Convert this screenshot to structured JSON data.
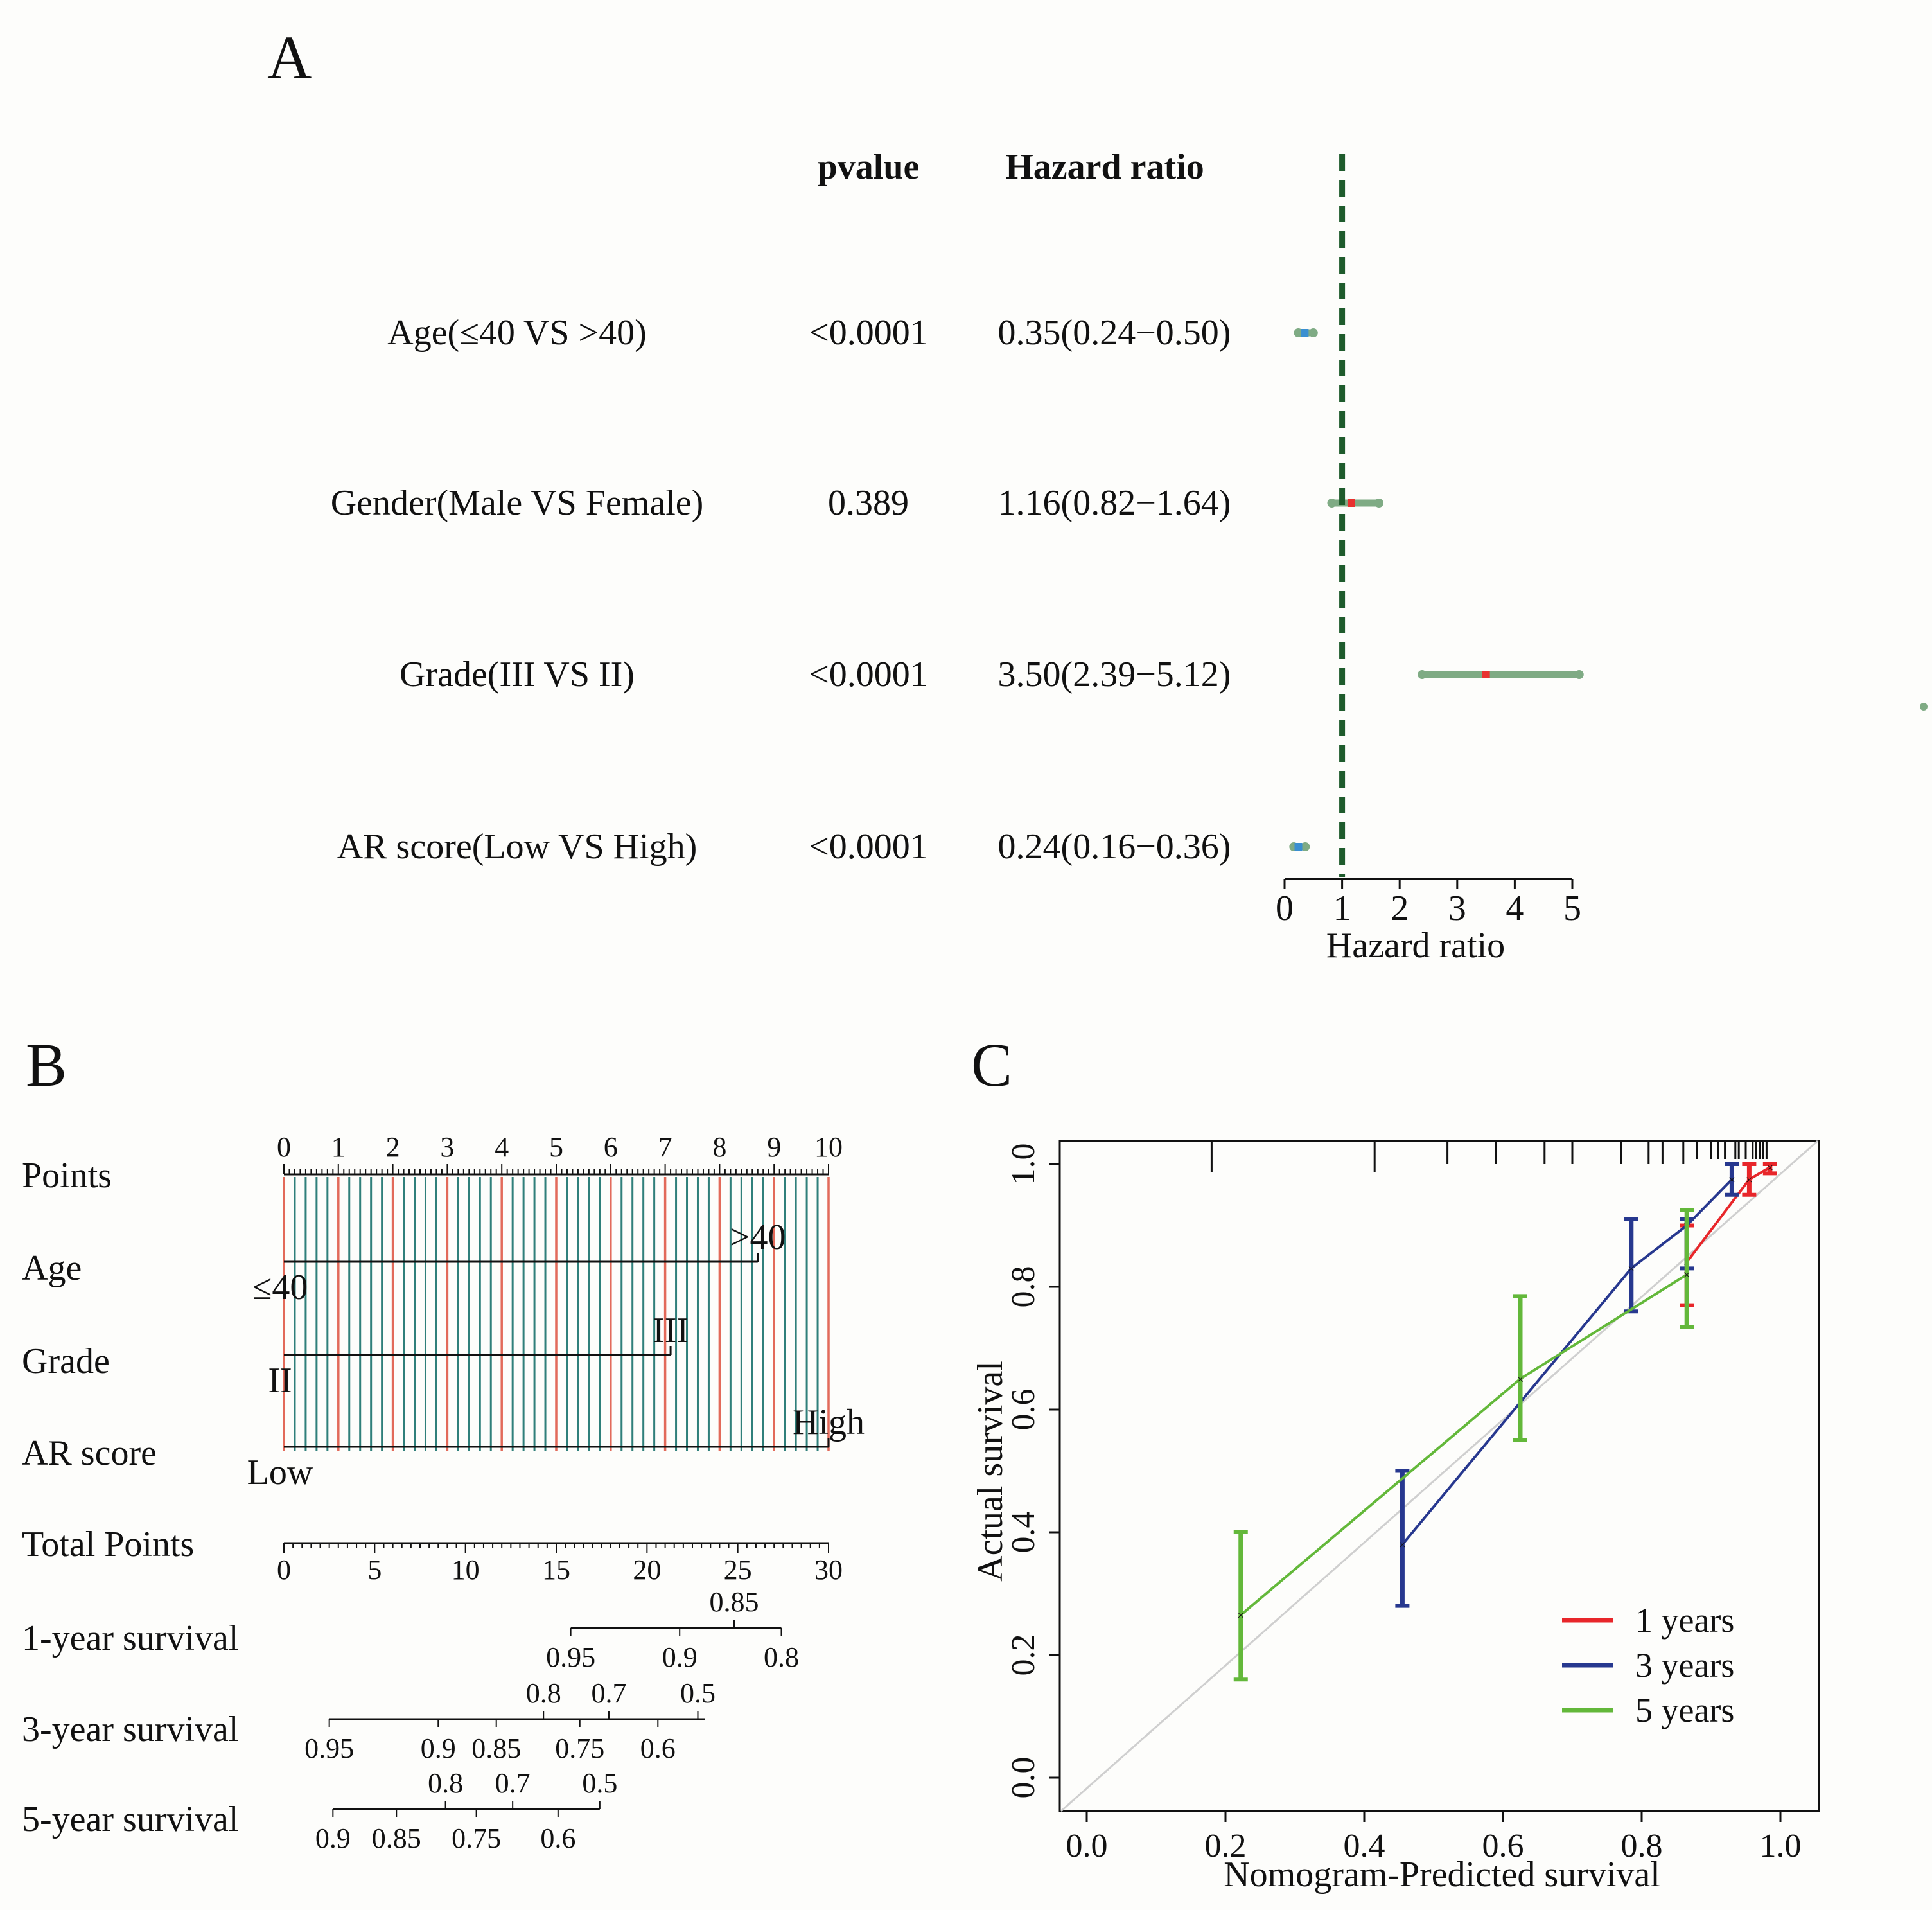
{
  "colors": {
    "ci_green": "#7fab84",
    "ref_line": "#1e5b2c",
    "point_red": "#e8312f",
    "point_blue": "#3a8fd1",
    "nomo_red": "#e26a5a",
    "nomo_teal": "#2f7f7a",
    "cal_red": "#e8262a",
    "cal_blue": "#27388f",
    "cal_green": "#63b83a",
    "ideal_gray": "#cfcfcf"
  },
  "panel_a": {
    "letter": "A",
    "col_pvalue": "pvalue",
    "col_hr": "Hazard ratio",
    "xlabel": "Hazard ratio",
    "chart_data": {
      "type": "forest",
      "xlim": [
        0,
        5
      ],
      "reference_line": 1,
      "ticks": [
        "0",
        "1",
        "2",
        "3",
        "4",
        "5"
      ],
      "rows": [
        {
          "label": "Age(≤40 VS >40)",
          "pvalue": "<0.0001",
          "hr_text": "0.35(0.24−0.50)",
          "hr": 0.35,
          "lo": 0.24,
          "hi": 0.5,
          "marker": "blue"
        },
        {
          "label": "Gender(Male VS Female)",
          "pvalue": "0.389",
          "hr_text": "1.16(0.82−1.64)",
          "hr": 1.16,
          "lo": 0.82,
          "hi": 1.64,
          "marker": "red"
        },
        {
          "label": "Grade(III VS II)",
          "pvalue": "<0.0001",
          "hr_text": "3.50(2.39−5.12)",
          "hr": 3.5,
          "lo": 2.39,
          "hi": 5.12,
          "marker": "red"
        },
        {
          "label": "AR score(Low VS High)",
          "pvalue": "<0.0001",
          "hr_text": "0.24(0.16−0.36)",
          "hr": 0.24,
          "lo": 0.16,
          "hi": 0.36,
          "marker": "blue"
        }
      ]
    }
  },
  "panel_b": {
    "letter": "B",
    "chart_data": {
      "type": "nomogram",
      "points_scale": {
        "label": "Points",
        "min": 0,
        "max": 10,
        "ticks": [
          "0",
          "1",
          "2",
          "3",
          "4",
          "5",
          "6",
          "7",
          "8",
          "9",
          "10"
        ]
      },
      "variables": [
        {
          "label": "Age",
          "levels": [
            {
              "text": "≤40",
              "points": 0
            },
            {
              "text": ">40",
              "points": 8.7
            }
          ]
        },
        {
          "label": "Grade",
          "levels": [
            {
              "text": "II",
              "points": 0
            },
            {
              "text": "III",
              "points": 7.1
            }
          ]
        },
        {
          "label": "AR score",
          "levels": [
            {
              "text": "Low",
              "points": 0
            },
            {
              "text": "High",
              "points": 10
            }
          ]
        }
      ],
      "total_points": {
        "label": "Total Points",
        "min": 0,
        "max": 30,
        "ticks": [
          "0",
          "5",
          "10",
          "15",
          "20",
          "25",
          "30"
        ]
      },
      "survival_scales": [
        {
          "label": "1-year survival",
          "range_total": [
            15.8,
            27.4
          ],
          "above": [
            {
              "text": "0.85",
              "total": 24.8
            }
          ],
          "below": [
            {
              "text": "0.95",
              "total": 15.8
            },
            {
              "text": "0.9",
              "total": 21.8
            },
            {
              "text": "0.8",
              "total": 27.4
            }
          ]
        },
        {
          "label": "3-year survival",
          "range_total": [
            2.5,
            23.2
          ],
          "above": [
            {
              "text": "0.8",
              "total": 14.3
            },
            {
              "text": "0.7",
              "total": 17.9
            },
            {
              "text": "0.5",
              "total": 22.8
            }
          ],
          "below": [
            {
              "text": "0.95",
              "total": 2.5
            },
            {
              "text": "0.9",
              "total": 8.5
            },
            {
              "text": "0.85",
              "total": 11.7
            },
            {
              "text": "0.75",
              "total": 16.3
            },
            {
              "text": "0.6",
              "total": 20.6
            }
          ]
        },
        {
          "label": "5-year survival",
          "range_total": [
            2.7,
            17.4
          ],
          "above": [
            {
              "text": "0.8",
              "total": 8.9
            },
            {
              "text": "0.7",
              "total": 12.6
            },
            {
              "text": "0.5",
              "total": 17.4
            }
          ],
          "below": [
            {
              "text": "0.9",
              "total": 2.7
            },
            {
              "text": "0.85",
              "total": 6.2
            },
            {
              "text": "0.75",
              "total": 10.6
            },
            {
              "text": "0.6",
              "total": 15.1
            }
          ]
        }
      ]
    }
  },
  "panel_c": {
    "letter": "C",
    "chart_data": {
      "type": "line",
      "xlabel": "Nomogram-Predicted survival",
      "ylabel": "Actual survival",
      "xlim": [
        0,
        1
      ],
      "ylim": [
        0,
        1
      ],
      "xticks": [
        "0.0",
        "0.2",
        "0.4",
        "0.6",
        "0.8",
        "1.0"
      ],
      "yticks": [
        "0.0",
        "0.2",
        "0.4",
        "0.6",
        "0.8",
        "1.0"
      ],
      "legend_position": "bottom-right",
      "series": [
        {
          "name": "1 years",
          "color": "red",
          "points": [
            {
              "x": 0.865,
              "y": 0.84,
              "lo": 0.77,
              "hi": 0.9
            },
            {
              "x": 0.955,
              "y": 0.975,
              "lo": 0.95,
              "hi": 1.0
            },
            {
              "x": 0.985,
              "y": 0.995,
              "lo": 0.985,
              "hi": 1.0
            }
          ]
        },
        {
          "name": "3 years",
          "color": "blue",
          "points": [
            {
              "x": 0.455,
              "y": 0.38,
              "lo": 0.28,
              "hi": 0.5
            },
            {
              "x": 0.785,
              "y": 0.83,
              "lo": 0.76,
              "hi": 0.91
            },
            {
              "x": 0.865,
              "y": 0.9,
              "lo": 0.83,
              "hi": 0.91
            },
            {
              "x": 0.93,
              "y": 0.975,
              "lo": 0.95,
              "hi": 1.0
            }
          ]
        },
        {
          "name": "5 years",
          "color": "green",
          "points": [
            {
              "x": 0.222,
              "y": 0.265,
              "lo": 0.16,
              "hi": 0.4
            },
            {
              "x": 0.625,
              "y": 0.65,
              "lo": 0.55,
              "hi": 0.785
            },
            {
              "x": 0.865,
              "y": 0.82,
              "lo": 0.735,
              "hi": 0.925
            }
          ]
        }
      ],
      "rug_x": [
        0.18,
        0.415,
        0.52,
        0.59,
        0.66,
        0.7,
        0.77,
        0.81,
        0.83,
        0.86,
        0.88,
        0.9,
        0.91,
        0.92,
        0.935,
        0.94,
        0.95,
        0.96,
        0.965,
        0.97,
        0.975,
        0.98
      ]
    }
  }
}
